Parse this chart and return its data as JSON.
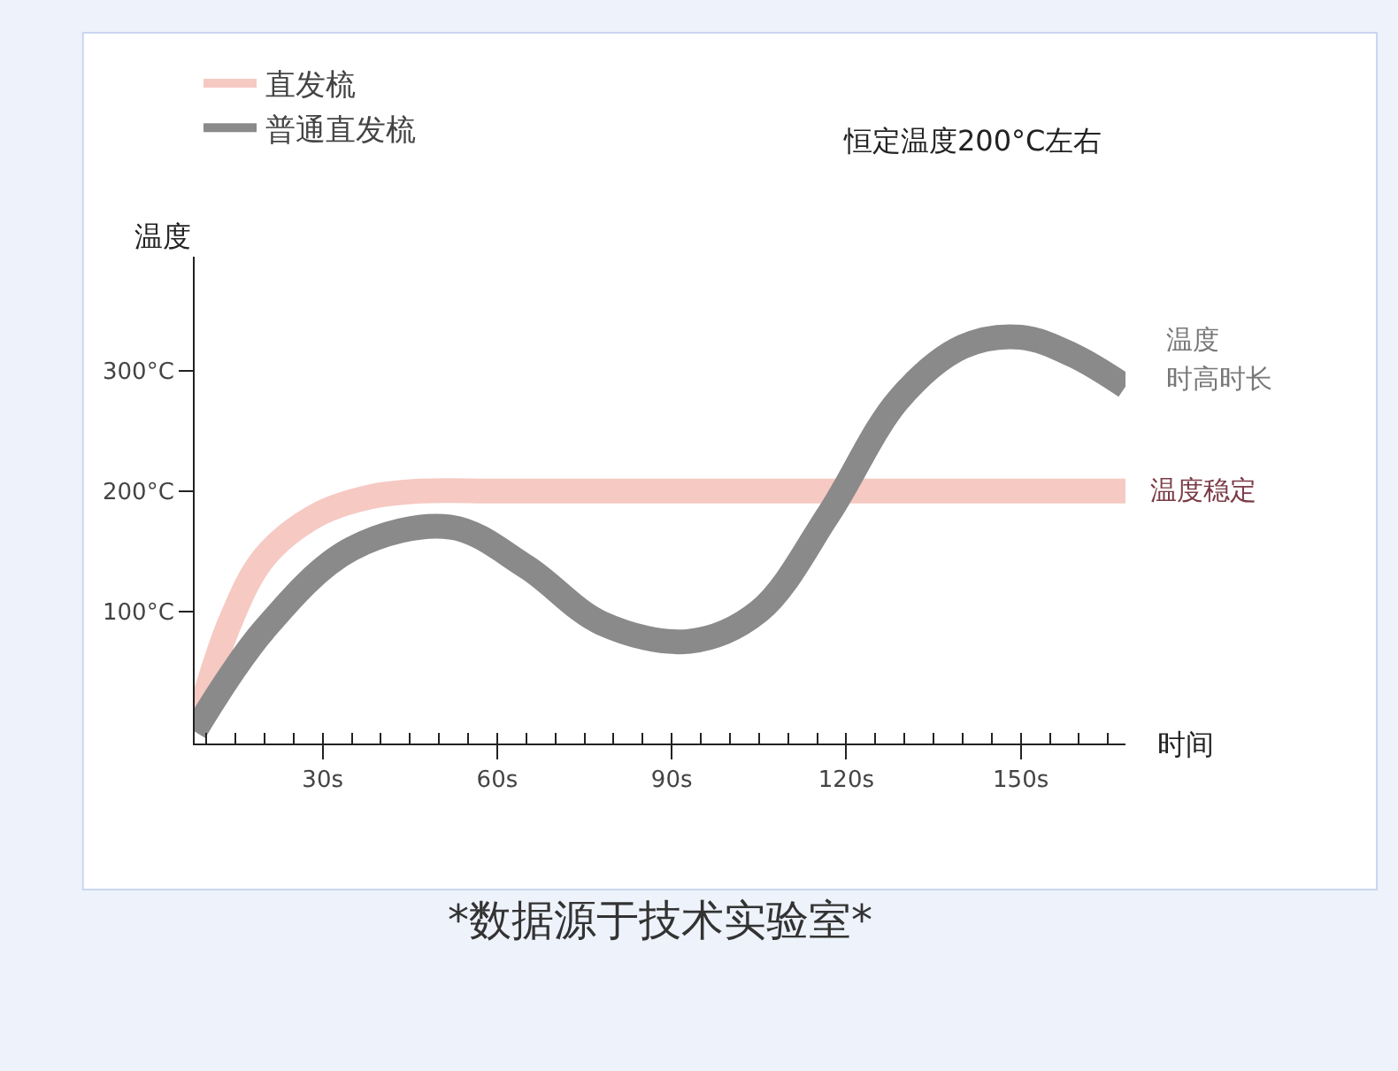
{
  "chart_data": {
    "type": "line",
    "xlabel": "时间",
    "ylabel": "温度",
    "x": [
      8,
      14,
      20,
      29,
      38,
      47,
      60,
      80,
      100,
      120,
      140,
      150,
      160,
      168
    ],
    "series": [
      {
        "name": "直发梳",
        "color": "#f6c9c3",
        "values": [
          0,
          90,
          145,
          180,
          195,
          200,
          200,
          200,
          200,
          200,
          200,
          200,
          200,
          200
        ]
      },
      {
        "name": "普通直发梳",
        "color": "#8a8a8a",
        "x": [
          8,
          20,
          35,
          52,
          65,
          78,
          93,
          105,
          117,
          129,
          140,
          150,
          159,
          168
        ],
        "values": [
          0,
          85,
          152,
          170,
          137,
          90,
          75,
          100,
          181,
          276,
          320,
          328,
          313,
          287
        ]
      }
    ],
    "xlim": [
      8,
      168
    ],
    "ylim": [
      -10,
      395
    ],
    "xticks": [
      {
        "value": 30,
        "label": "30s"
      },
      {
        "value": 60,
        "label": "60s"
      },
      {
        "value": 90,
        "label": "90s"
      },
      {
        "value": 120,
        "label": "120s"
      },
      {
        "value": 150,
        "label": "150s"
      }
    ],
    "yticks": [
      {
        "value": 100,
        "label": "100°C"
      },
      {
        "value": 200,
        "label": "200°C"
      },
      {
        "value": 300,
        "label": "300°C"
      }
    ],
    "legend": "top left",
    "marker": "none",
    "line_style": "solid",
    "annotations": [
      "恒定温度200°C左右",
      {
        "text": "温度稳定",
        "x": 168,
        "y": 200
      },
      "温度",
      "时高时长",
      "*数据源于技术实验室*"
    ]
  }
}
